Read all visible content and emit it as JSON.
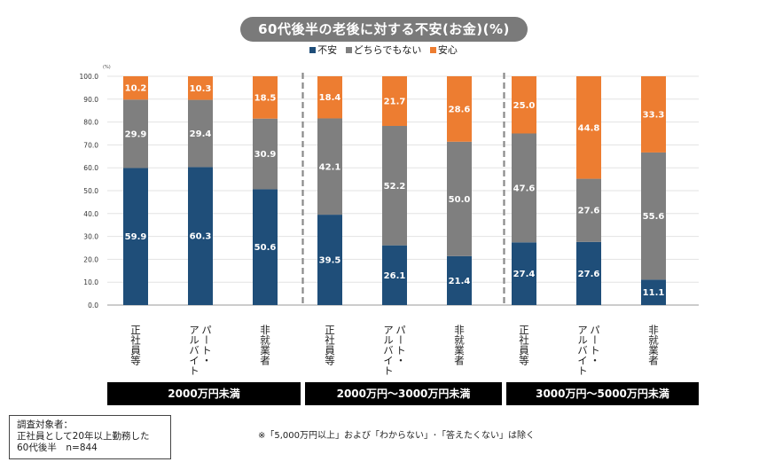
{
  "title": "60代後半の老後に対する不安(お金)(%)",
  "unit_label": "(%)",
  "legend": [
    {
      "label": "不安",
      "color": "#1f4e79"
    },
    {
      "label": "どちらでもない",
      "color": "#7f7f7f"
    },
    {
      "label": "安心",
      "color": "#ed7d31"
    }
  ],
  "chart_data": {
    "type": "bar",
    "stacked": true,
    "title": "60代後半の老後に対する不安(お金)(%)",
    "ylim": [
      0,
      100
    ],
    "yticks": [
      "0.0",
      "10.0",
      "20.0",
      "30.0",
      "40.0",
      "50.0",
      "60.0",
      "70.0",
      "80.0",
      "90.0",
      "100.0"
    ],
    "categories": [
      "正社員等",
      "パート・アルバイト",
      "非就業者",
      "正社員等",
      "パート・アルバイト",
      "非就業者",
      "正社員等",
      "パート・アルバイト",
      "非就業者"
    ],
    "category_lines": [
      [
        "正社員等"
      ],
      [
        "パート・",
        "アルバイト"
      ],
      [
        "非就業者"
      ],
      [
        "正社員等"
      ],
      [
        "パート・",
        "アルバイト"
      ],
      [
        "非就業者"
      ],
      [
        "正社員等"
      ],
      [
        "パート・",
        "アルバイト"
      ],
      [
        "非就業者"
      ]
    ],
    "groups": [
      "2000万円未満",
      "2000万円～3000万円未満",
      "3000万円～5000万円未満"
    ],
    "series": [
      {
        "name": "不安",
        "color": "#1f4e79",
        "values": [
          59.9,
          60.3,
          50.6,
          39.5,
          26.1,
          21.4,
          27.4,
          27.6,
          11.1
        ],
        "labels": [
          "59.9",
          "60.3",
          "50.6",
          "39.5",
          "26.1",
          "21.4",
          "27.4",
          "27.6",
          "11.1"
        ]
      },
      {
        "name": "どちらでもない",
        "color": "#7f7f7f",
        "values": [
          29.9,
          29.4,
          30.9,
          42.1,
          52.2,
          50.0,
          47.6,
          27.6,
          55.6
        ],
        "labels": [
          "29.9",
          "29.4",
          "30.9",
          "42.1",
          "52.2",
          "50.0",
          "47.6",
          "27.6",
          "55.6"
        ]
      },
      {
        "name": "安心",
        "color": "#ed7d31",
        "values": [
          10.2,
          10.3,
          18.5,
          18.4,
          21.7,
          28.6,
          25.0,
          44.8,
          33.3
        ],
        "labels": [
          "10.2",
          "10.3",
          "18.5",
          "18.4",
          "21.7",
          "28.6",
          "25.0",
          "44.8",
          "33.3"
        ]
      }
    ]
  },
  "note": "※「5,000万円以上」および「わからない」･「答えたくない」は除く",
  "target": {
    "line1": "調査対象者：",
    "line2": "正社員として20年以上勤務した",
    "line3": "60代後半　n=844"
  }
}
